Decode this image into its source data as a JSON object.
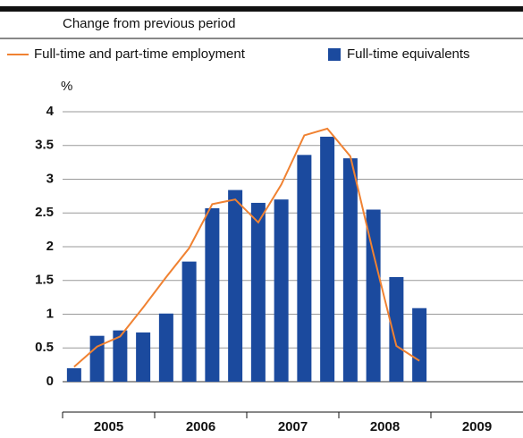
{
  "chart_data": {
    "type": "bar_line",
    "subtitle": "Change from previous period",
    "y_unit": "%",
    "categories": [
      null,
      null,
      null,
      null,
      null,
      null,
      null,
      null,
      null,
      null,
      null,
      null,
      null,
      null,
      null,
      null
    ],
    "year_labels": [
      "2005",
      "2006",
      "2007",
      "2008",
      "2009"
    ],
    "series": [
      {
        "name": "Full-time and part-time employment",
        "type": "line",
        "color": "#f08232",
        "values": [
          0.22,
          0.52,
          0.67,
          1.1,
          1.55,
          1.98,
          2.63,
          2.7,
          2.36,
          2.92,
          3.65,
          3.75,
          3.34,
          1.9,
          0.53,
          0.31
        ]
      },
      {
        "name": "Full-time equivalents",
        "type": "bar",
        "color": "#1b4a9e",
        "values": [
          0.2,
          0.68,
          0.76,
          0.73,
          1.01,
          1.78,
          2.57,
          2.84,
          2.65,
          2.7,
          3.36,
          3.63,
          3.31,
          2.55,
          1.55,
          1.09
        ]
      }
    ],
    "ylim": [
      -0.45,
      4
    ],
    "yticks": [
      0,
      0.5,
      1,
      1.5,
      2,
      2.5,
      3,
      3.5,
      4
    ],
    "grid": true
  }
}
